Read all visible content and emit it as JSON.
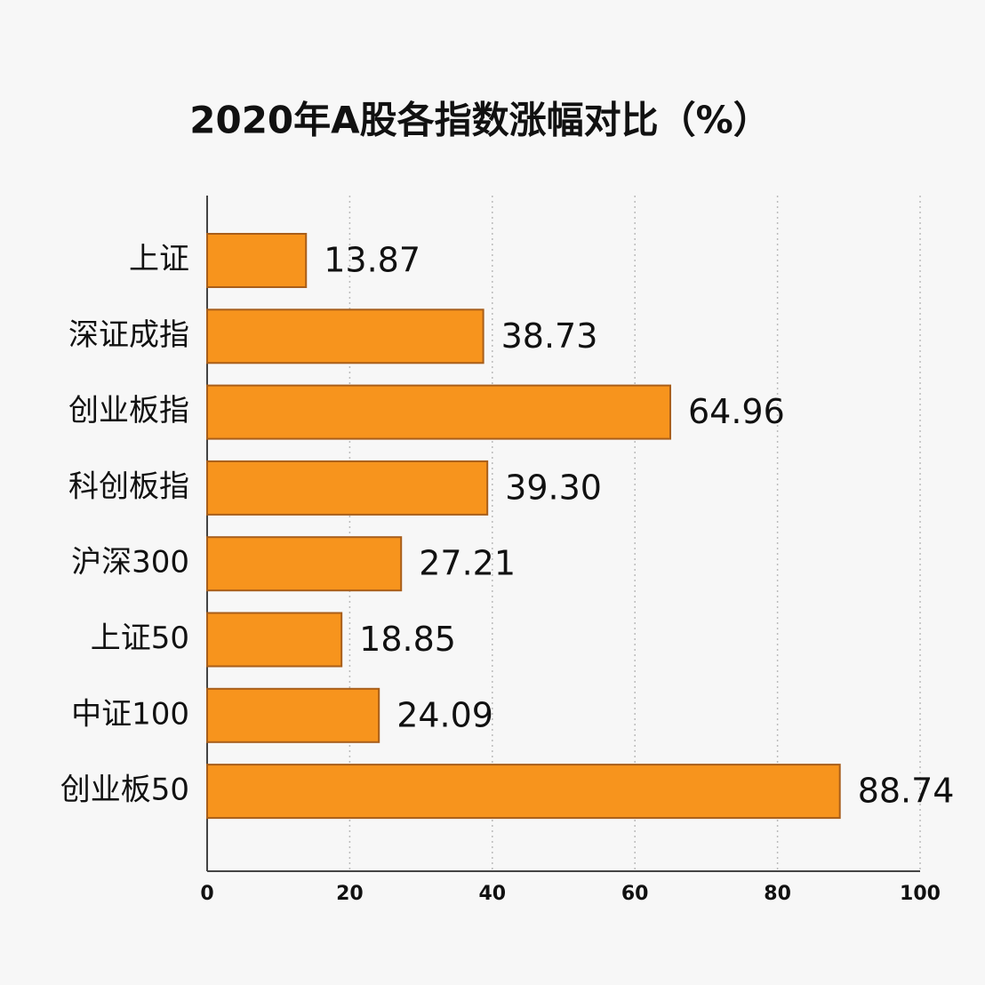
{
  "chart_data": {
    "type": "bar",
    "orientation": "horizontal",
    "title": "2020年A股各指数涨幅对比（%）",
    "categories": [
      "上证",
      "深证成指",
      "创业板指",
      "科创板指",
      "沪深300",
      "上证50",
      "中证100",
      "创业板50"
    ],
    "values": [
      13.87,
      38.73,
      64.96,
      39.3,
      27.21,
      18.85,
      24.09,
      88.74
    ],
    "value_labels": [
      "13.87",
      "38.73",
      "64.96",
      "39.30",
      "27.21",
      "18.85",
      "24.09",
      "88.74"
    ],
    "color": "#f7941d",
    "xlim": [
      0,
      100
    ],
    "xticks": [
      0,
      20,
      40,
      60,
      80,
      100
    ],
    "grid": true
  }
}
